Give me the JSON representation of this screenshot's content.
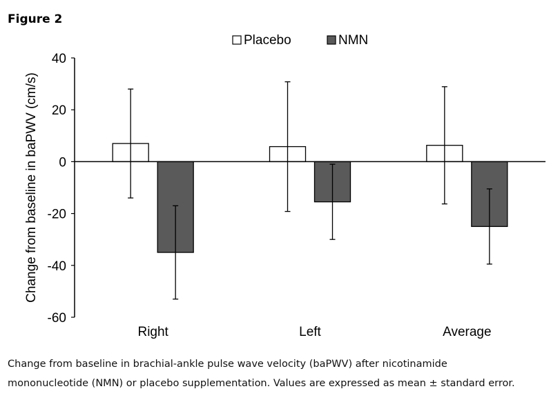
{
  "figure_label": "Figure 2",
  "caption": {
    "line1": "Change from baseline in brachial-ankle pulse wave velocity (baPWV) after nicotinamide",
    "line2": "mononucleotide (NMN) or placebo supplementation. Values are expressed as mean ± standard error."
  },
  "chart_data": {
    "type": "bar",
    "title": "",
    "xlabel": "",
    "ylabel": "Change from baseline in baPWV (cm/s)",
    "categories": [
      "Right",
      "Left",
      "Average"
    ],
    "ylim": [
      -60,
      40
    ],
    "yticks": [
      40,
      20,
      0,
      -20,
      -40,
      -60
    ],
    "ytick_labels": [
      "40",
      "20",
      "0",
      "-20",
      "-40",
      "-60"
    ],
    "grid": false,
    "legend_position": "top-center",
    "series": [
      {
        "name": "Placebo",
        "color": "#ffffff",
        "values": [
          7,
          5.8,
          6.3
        ],
        "error": [
          21,
          25,
          22.6
        ]
      },
      {
        "name": "NMN",
        "color": "#5a5a5a",
        "values": [
          -35,
          -15.5,
          -25
        ],
        "error": [
          18,
          14.5,
          14.5
        ]
      }
    ]
  }
}
